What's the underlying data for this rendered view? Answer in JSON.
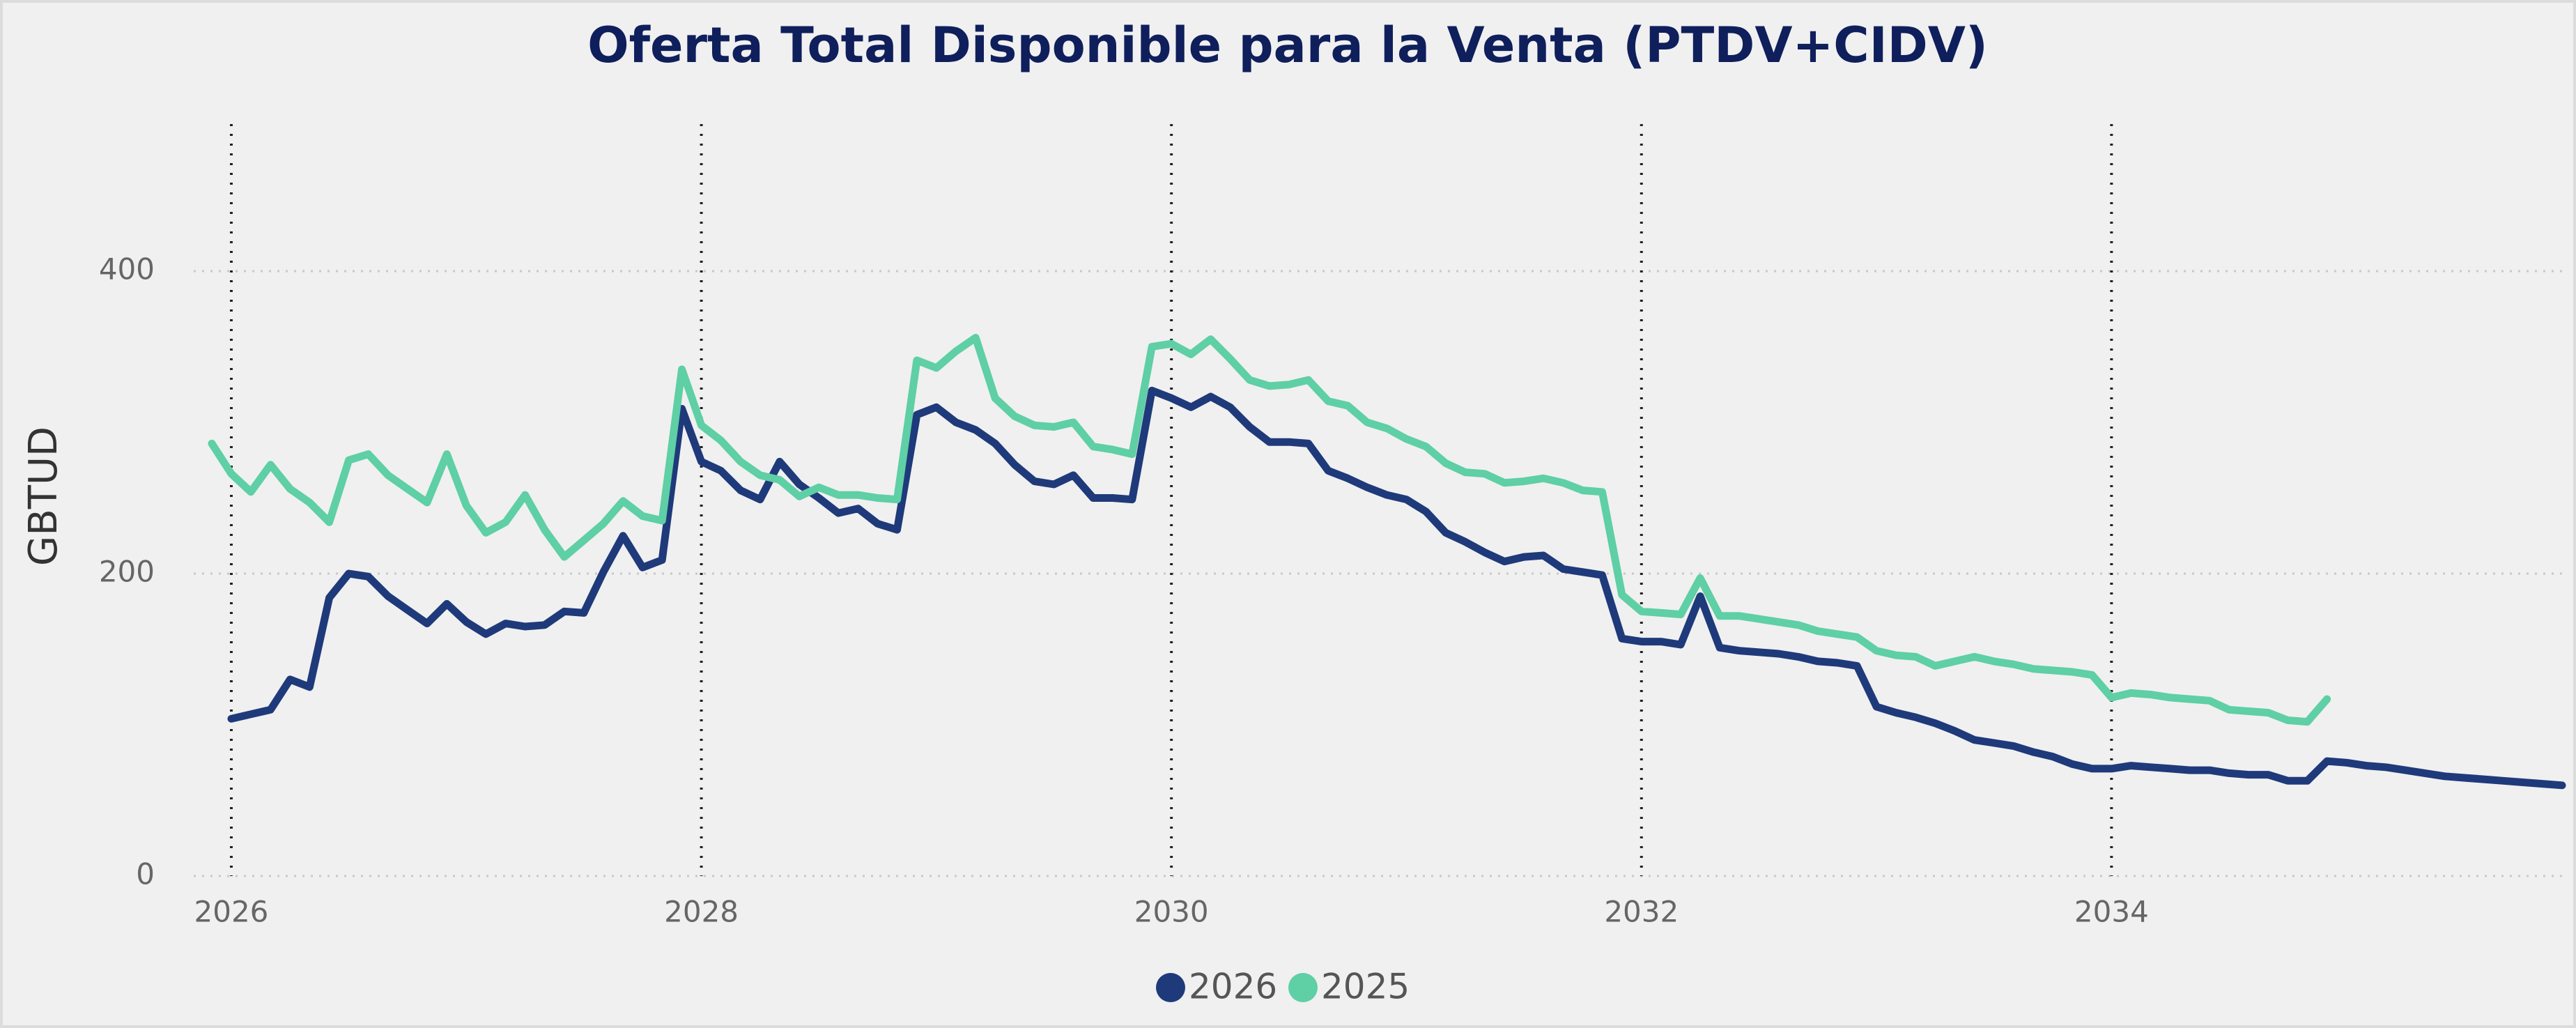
{
  "chart_data": {
    "type": "line",
    "title": "Oferta Total Disponible para la Venta (PTDV+CIDV)",
    "y_label": "GBTUD",
    "x": [
      2025.917,
      2026,
      2026.083,
      2026.167,
      2026.25,
      2026.333,
      2026.417,
      2026.5,
      2026.583,
      2026.667,
      2026.75,
      2026.833,
      2026.917,
      2027,
      2027.083,
      2027.167,
      2027.25,
      2027.333,
      2027.417,
      2027.5,
      2027.583,
      2027.667,
      2027.75,
      2027.833,
      2027.917,
      2028,
      2028.083,
      2028.167,
      2028.25,
      2028.333,
      2028.417,
      2028.5,
      2028.583,
      2028.667,
      2028.75,
      2028.833,
      2028.917,
      2029,
      2029.083,
      2029.167,
      2029.25,
      2029.333,
      2029.417,
      2029.5,
      2029.583,
      2029.667,
      2029.75,
      2029.833,
      2029.917,
      2030,
      2030.083,
      2030.167,
      2030.25,
      2030.333,
      2030.417,
      2030.5,
      2030.583,
      2030.667,
      2030.75,
      2030.833,
      2030.917,
      2031,
      2031.083,
      2031.167,
      2031.25,
      2031.333,
      2031.417,
      2031.5,
      2031.583,
      2031.667,
      2031.75,
      2031.833,
      2031.917,
      2032,
      2032.083,
      2032.167,
      2032.25,
      2032.333,
      2032.417,
      2032.5,
      2032.583,
      2032.667,
      2032.75,
      2032.833,
      2032.917,
      2033,
      2033.083,
      2033.167,
      2033.25,
      2033.333,
      2033.417,
      2033.5,
      2033.583,
      2033.667,
      2033.75,
      2033.833,
      2033.917,
      2034,
      2034.083,
      2034.167,
      2034.25,
      2034.333,
      2034.417,
      2034.5,
      2034.583,
      2034.667,
      2034.75,
      2034.833,
      2034.917,
      2035,
      2035.083,
      2035.167,
      2035.25,
      2035.333,
      2035.417,
      2035.5,
      2035.583,
      2035.667,
      2035.75,
      2035.833,
      2035.917
    ],
    "series": [
      {
        "name": "2026",
        "color": "#1f3a7a",
        "values": [
          null,
          104,
          107,
          110,
          130,
          125,
          184,
          200,
          198,
          185,
          176,
          167,
          180,
          168,
          160,
          167,
          165,
          166,
          175,
          174,
          201,
          225,
          204,
          209,
          309,
          274,
          268,
          255,
          249,
          274,
          259,
          250,
          240,
          243,
          233,
          229,
          305,
          310,
          300,
          295,
          286,
          272,
          261,
          259,
          265,
          250,
          250,
          249,
          321,
          316,
          310,
          317,
          310,
          297,
          287,
          287,
          286,
          268,
          263,
          257,
          252,
          249,
          241,
          227,
          221,
          214,
          208,
          211,
          212,
          203,
          201,
          199,
          157,
          155,
          155,
          153,
          185,
          151,
          149,
          148,
          147,
          145,
          142,
          141,
          139,
          112,
          108,
          105,
          101,
          96,
          90,
          88,
          86,
          82,
          79,
          74,
          71,
          71,
          73,
          72,
          71,
          70,
          70,
          68,
          67,
          67,
          63,
          63,
          76,
          75,
          73,
          72,
          70,
          68,
          66,
          65,
          64,
          63,
          62,
          61,
          60
        ]
      },
      {
        "name": "2025",
        "color": "#5fcfa5",
        "values": [
          286,
          266,
          254,
          272,
          256,
          247,
          234,
          275,
          279,
          265,
          256,
          247,
          279,
          245,
          227,
          234,
          252,
          229,
          211,
          222,
          233,
          248,
          238,
          235,
          335,
          298,
          288,
          274,
          265,
          262,
          251,
          257,
          252,
          252,
          250,
          249,
          341,
          336,
          347,
          356,
          316,
          304,
          298,
          297,
          300,
          284,
          282,
          279,
          350,
          352,
          345,
          355,
          342,
          328,
          324,
          325,
          328,
          314,
          311,
          300,
          296,
          289,
          284,
          273,
          267,
          266,
          260,
          261,
          263,
          260,
          255,
          254,
          186,
          175,
          174,
          173,
          197,
          172,
          172,
          170,
          168,
          166,
          162,
          160,
          158,
          149,
          146,
          145,
          139,
          142,
          145,
          142,
          140,
          137,
          136,
          135,
          133,
          118,
          121,
          120,
          118,
          117,
          116,
          110,
          109,
          108,
          103,
          102,
          117,
          null,
          null,
          null,
          null,
          null,
          null,
          null,
          null,
          null,
          null,
          null,
          null
        ]
      }
    ],
    "xlim": [
      2025.84,
      2035.92
    ],
    "xticks": [
      2026,
      2028,
      2030,
      2032,
      2034
    ],
    "ylim": [
      0,
      500
    ],
    "yticks": [
      0,
      200,
      400
    ],
    "grid": true,
    "legend": "bottom"
  }
}
